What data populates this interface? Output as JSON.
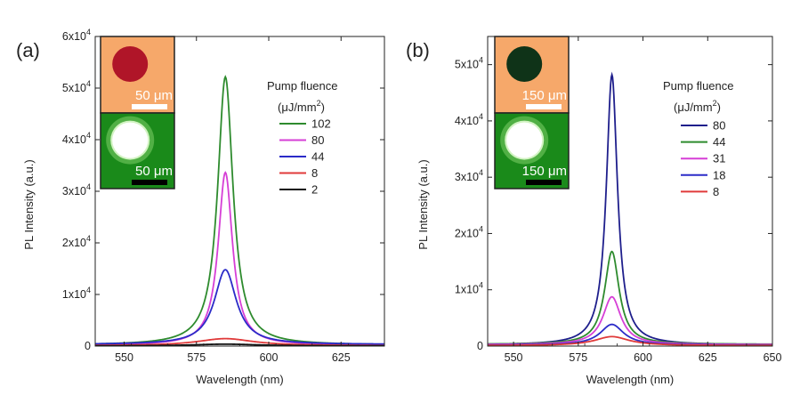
{
  "chart_data": [
    {
      "type": "line",
      "panel_label": "(a)",
      "xlabel": "Wavelength (nm)",
      "ylabel": "PL Intensity (a.u.)",
      "xlim": [
        540,
        640
      ],
      "ylim": [
        0,
        60000
      ],
      "x_ticks": [
        550,
        575,
        600,
        625
      ],
      "y_ticks": [
        0,
        10000,
        20000,
        30000,
        40000,
        50000,
        60000
      ],
      "y_tick_labels": [
        "0",
        "1x10",
        "2x10",
        "3x10",
        "4x10",
        "5x10",
        "6x10"
      ],
      "y_tick_exp": "4",
      "peak_nm": 585,
      "legend": {
        "title_line1": "Pump fluence",
        "title_unit_base": "(μJ/mm",
        "title_unit_exp": "2",
        "title_unit_close": ")",
        "placement": "top-right"
      },
      "series": [
        {
          "name": "102",
          "color": "#2e8b2e",
          "peak": 52000,
          "base": 170,
          "width": 3.2
        },
        {
          "name": "80",
          "color": "#d63fd6",
          "peak": 33500,
          "base": 150,
          "width": 3.0
        },
        {
          "name": "44",
          "color": "#2b2bc8",
          "peak": 14500,
          "base": 300,
          "width": 4.6
        },
        {
          "name": "8",
          "color": "#e03a3a",
          "peak": 1400,
          "base": 40,
          "width": 12
        },
        {
          "name": "2",
          "color": "#111111",
          "peak": 350,
          "base": 20,
          "width": 14
        }
      ],
      "insets": [
        {
          "scale_label": "50 μm",
          "bg": "#f6a86a",
          "spot": "#b01528",
          "bar": "#ffffff"
        },
        {
          "scale_label": "50 μm",
          "bg": "#1a8a1a",
          "spot": "#ffffff",
          "bar": "#000000"
        }
      ]
    },
    {
      "type": "line",
      "panel_label": "(b)",
      "xlabel": "Wavelength (nm)",
      "ylabel": "PL Intensity (a.u.)",
      "xlim": [
        540,
        650
      ],
      "ylim": [
        0,
        55000
      ],
      "x_ticks": [
        550,
        575,
        600,
        625,
        650
      ],
      "y_ticks": [
        0,
        10000,
        20000,
        30000,
        40000,
        50000
      ],
      "y_tick_labels": [
        "0",
        "1x10",
        "2x10",
        "3x10",
        "4x10",
        "5x10"
      ],
      "y_tick_exp": "4",
      "peak_nm": 588,
      "legend": {
        "title_line1": "Pump fluence",
        "title_unit_base": "(μJ/mm",
        "title_unit_exp": "2",
        "title_unit_close": ")",
        "placement": "top-right"
      },
      "series": [
        {
          "name": "80",
          "color": "#1f1f8c",
          "peak": 48000,
          "base": 200,
          "width": 2.6
        },
        {
          "name": "44",
          "color": "#2e8b2e",
          "peak": 16500,
          "base": 300,
          "width": 3.4
        },
        {
          "name": "31",
          "color": "#d63fd6",
          "peak": 8500,
          "base": 250,
          "width": 4.2
        },
        {
          "name": "18",
          "color": "#2b2bc8",
          "peak": 3700,
          "base": 150,
          "width": 5.5
        },
        {
          "name": "8",
          "color": "#e03a3a",
          "peak": 1600,
          "base": 80,
          "width": 8
        }
      ],
      "insets": [
        {
          "scale_label": "150 μm",
          "bg": "#f6a86a",
          "spot": "#0f3318",
          "bar": "#ffffff"
        },
        {
          "scale_label": "150 μm",
          "bg": "#1a8a1a",
          "spot": "#ffffff",
          "bar": "#000000"
        }
      ]
    }
  ]
}
